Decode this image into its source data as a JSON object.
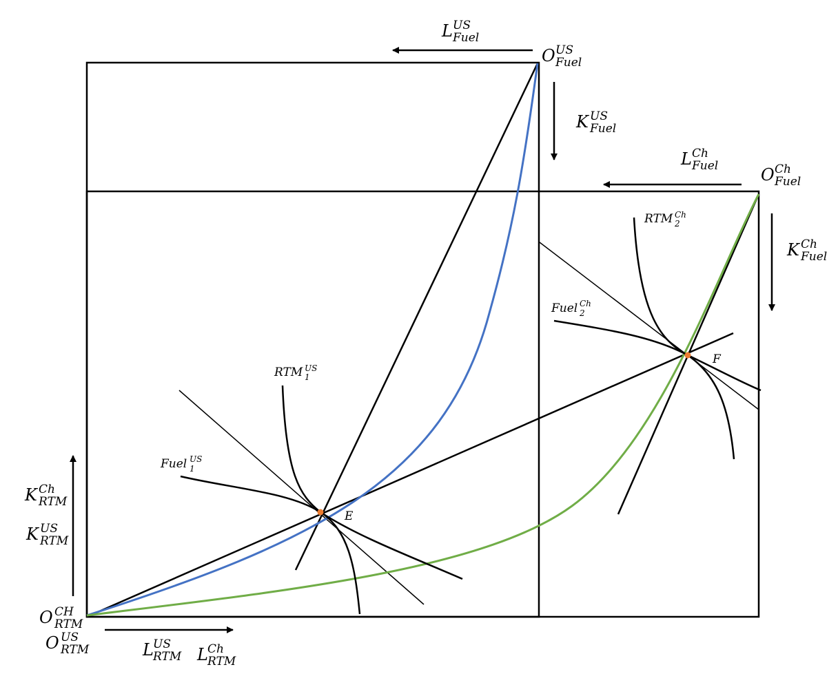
{
  "colors": {
    "line": "#000000",
    "us_contract_curve": "#4472C4",
    "ch_contract_curve": "#70AD47",
    "equilibrium_point": "#ED7D31"
  },
  "labels": {
    "L_fuel_us": {
      "main": "L",
      "sup": "US",
      "sub": "Fuel"
    },
    "O_fuel_us": {
      "main": "O",
      "sup": "US",
      "sub": "Fuel"
    },
    "K_fuel_us": {
      "main": "K",
      "sup": "US",
      "sub": "Fuel"
    },
    "L_fuel_ch": {
      "main": "L",
      "sup": "Ch",
      "sub": "Fuel"
    },
    "O_fuel_ch": {
      "main": "O",
      "sup": "Ch",
      "sub": "Fuel"
    },
    "K_fuel_ch": {
      "main": "K",
      "sup": "Ch",
      "sub": "Fuel"
    },
    "K_rtm_ch": {
      "main": "K",
      "sup": "Ch",
      "sub": "RTM"
    },
    "K_rtm_us": {
      "main": "K",
      "sup": "US",
      "sub": "RTM"
    },
    "O_rtm_ch": {
      "main": "O",
      "sup": "CH",
      "sub": "RTM"
    },
    "O_rtm_us": {
      "main": "O",
      "sup": "US",
      "sub": "RTM"
    },
    "L_rtm_us": {
      "main": "L",
      "sup": "US",
      "sub": "RTM"
    },
    "L_rtm_ch": {
      "main": "L",
      "sup": "Ch",
      "sub": "RTM"
    },
    "rtm1_us": {
      "main": "RTM",
      "sup": "US",
      "sub": "1"
    },
    "fuel1_us": {
      "main": "Fuel",
      "sup": "US",
      "sub": "1"
    },
    "rtm2_ch": {
      "main": "RTM",
      "sup": "Ch",
      "sub": "2"
    },
    "fuel2_ch": {
      "main": "Fuel",
      "sup": "Ch",
      "sub": "2"
    },
    "point_E": "E",
    "point_F": "F"
  }
}
